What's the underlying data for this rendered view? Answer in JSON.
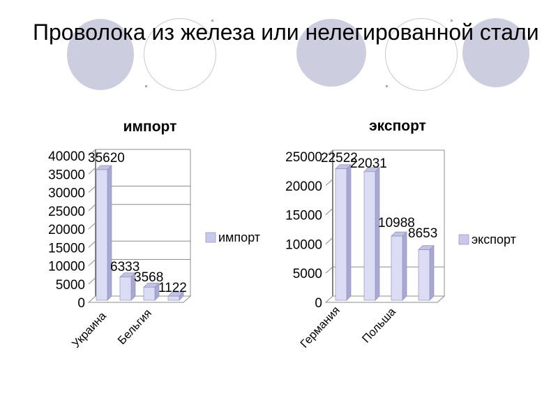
{
  "slide": {
    "title": "Проволока из железа или нелегированной стали"
  },
  "decor": {
    "circle_fill": "#cdcde0",
    "circle_outline": "#c8c8d8"
  },
  "colors": {
    "grid": "#8c8c8c",
    "axis": "#4d4d4d",
    "bar_front": "#dcdcf5",
    "bar_side": "#a8a8d2",
    "bar_top": "#c2c2e4",
    "bar_edge": "#9292bc",
    "legend_swatch": "#c8c8ec",
    "text": "#000000"
  },
  "chart_data": [
    {
      "type": "bar",
      "variant": "3d-column",
      "title": "импорт",
      "series": [
        {
          "name": "импорт",
          "values": [
            35620,
            6333,
            3568,
            1122
          ]
        }
      ],
      "data_labels": [
        "35620",
        "6333",
        "3568",
        "1122"
      ],
      "visible_category_labels": [
        "Украина",
        "Бельгия"
      ],
      "legend": {
        "label": "импорт",
        "position": "right"
      },
      "ylim": [
        0,
        40000
      ],
      "ytick_step": 5000,
      "ytick_labels": [
        "40000",
        "35000",
        "30000",
        "25000",
        "20000",
        "15000",
        "10000",
        "5000",
        "0"
      ],
      "gridlines_at": [
        30000,
        25000,
        15000,
        10000
      ],
      "grid": true
    },
    {
      "type": "bar",
      "variant": "3d-column",
      "title": "экспорт",
      "series": [
        {
          "name": "экспорт",
          "values": [
            22522,
            22031,
            10988,
            8653
          ]
        }
      ],
      "data_labels": [
        "22522",
        "22031",
        "10988",
        "8653"
      ],
      "visible_category_labels": [
        "Германия",
        "Польша"
      ],
      "legend": {
        "label": "экспорт",
        "position": "right"
      },
      "ylim": [
        0,
        25000
      ],
      "ytick_step": 5000,
      "ytick_labels": [
        "25000",
        "20000",
        "15000",
        "10000",
        "5000",
        "0"
      ],
      "gridlines_at": [
        5000
      ],
      "grid": true
    }
  ]
}
